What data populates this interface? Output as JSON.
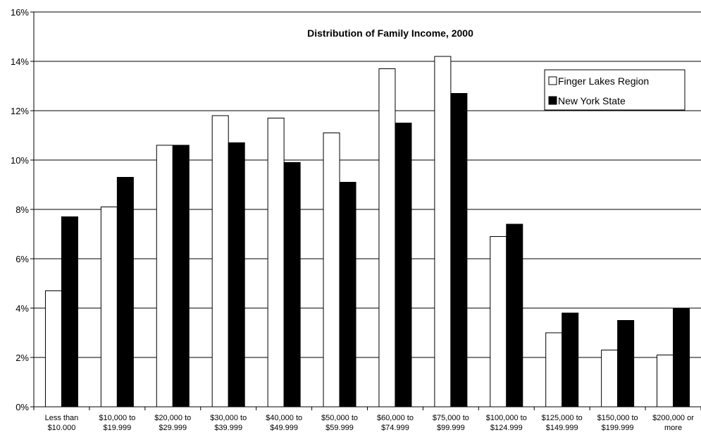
{
  "chart_data": {
    "type": "bar",
    "title": "Distribution of Family Income, 2000",
    "xlabel": "",
    "ylabel": "",
    "ylim": [
      0,
      16
    ],
    "y_ticks": [
      0,
      2,
      4,
      6,
      8,
      10,
      12,
      14,
      16
    ],
    "y_tick_suffix": "%",
    "grid": true,
    "legend_position": "top-right",
    "categories": [
      [
        "Less than",
        "$10.000"
      ],
      [
        "$10,000 to",
        "$19.999"
      ],
      [
        "$20,000 to",
        "$29.999"
      ],
      [
        "$30,000 to",
        "$39.999"
      ],
      [
        "$40,000 to",
        "$49.999"
      ],
      [
        "$50,000 to",
        "$59.999"
      ],
      [
        "$60,000 to",
        "$74.999"
      ],
      [
        "$75,000 to",
        "$99.999"
      ],
      [
        "$100,000 to",
        "$124.999"
      ],
      [
        "$125,000 to",
        "$149.999"
      ],
      [
        "$150,000 to",
        "$199.999"
      ],
      [
        "$200,000 or",
        "more"
      ]
    ],
    "series": [
      {
        "name": "Finger Lakes Region",
        "color": "#ffffff",
        "values": [
          4.7,
          8.1,
          10.6,
          11.8,
          11.7,
          11.1,
          13.7,
          14.2,
          6.9,
          3.0,
          2.3,
          2.1
        ]
      },
      {
        "name": "New York State",
        "color": "#000000",
        "values": [
          7.7,
          9.3,
          10.6,
          10.7,
          9.9,
          9.1,
          11.5,
          12.7,
          7.4,
          3.8,
          3.5,
          4.0
        ]
      }
    ]
  }
}
